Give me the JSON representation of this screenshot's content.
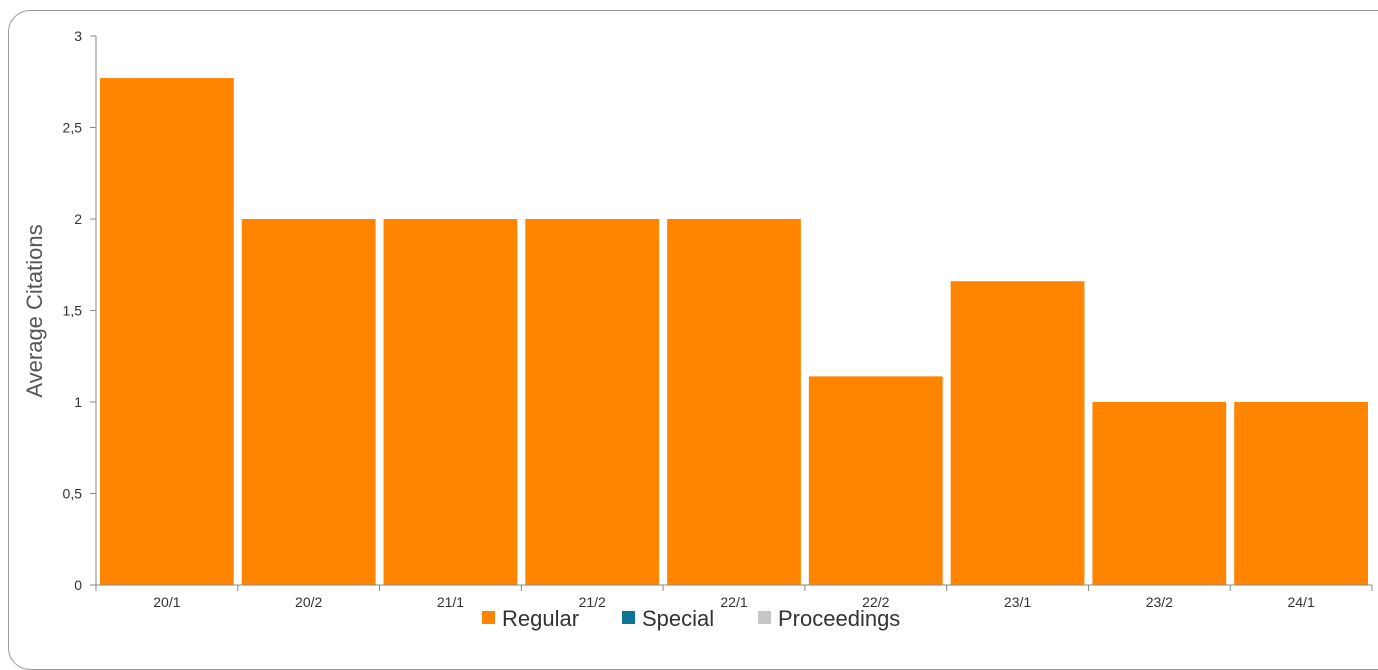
{
  "chart_data": {
    "type": "bar",
    "title": "",
    "xlabel": "",
    "ylabel": "Average Citations",
    "categories": [
      "20/1",
      "20/2",
      "21/1",
      "21/2",
      "22/1",
      "22/2",
      "23/1",
      "23/2",
      "24/1"
    ],
    "series": [
      {
        "name": "Regular",
        "color": "#ff8400",
        "values": [
          2.77,
          2.0,
          2.0,
          2.0,
          2.0,
          1.14,
          1.66,
          1.0,
          1.0
        ]
      },
      {
        "name": "Special",
        "color": "#0a7694",
        "values": [
          0,
          0,
          0,
          0,
          0,
          0,
          0,
          0,
          0
        ]
      },
      {
        "name": "Proceedings",
        "color": "#c6c6c6",
        "values": [
          0,
          0,
          0,
          0,
          0,
          0,
          0,
          0,
          0
        ]
      }
    ],
    "ylim": [
      0,
      3
    ],
    "yticks": [
      {
        "value": 0,
        "label": "0"
      },
      {
        "value": 0.5,
        "label": "0,5"
      },
      {
        "value": 1,
        "label": "1"
      },
      {
        "value": 1.5,
        "label": "1,5"
      },
      {
        "value": 2,
        "label": "2"
      },
      {
        "value": 2.5,
        "label": "2,5"
      },
      {
        "value": 3,
        "label": "3"
      }
    ],
    "grid": false,
    "legend_position": "bottom"
  }
}
